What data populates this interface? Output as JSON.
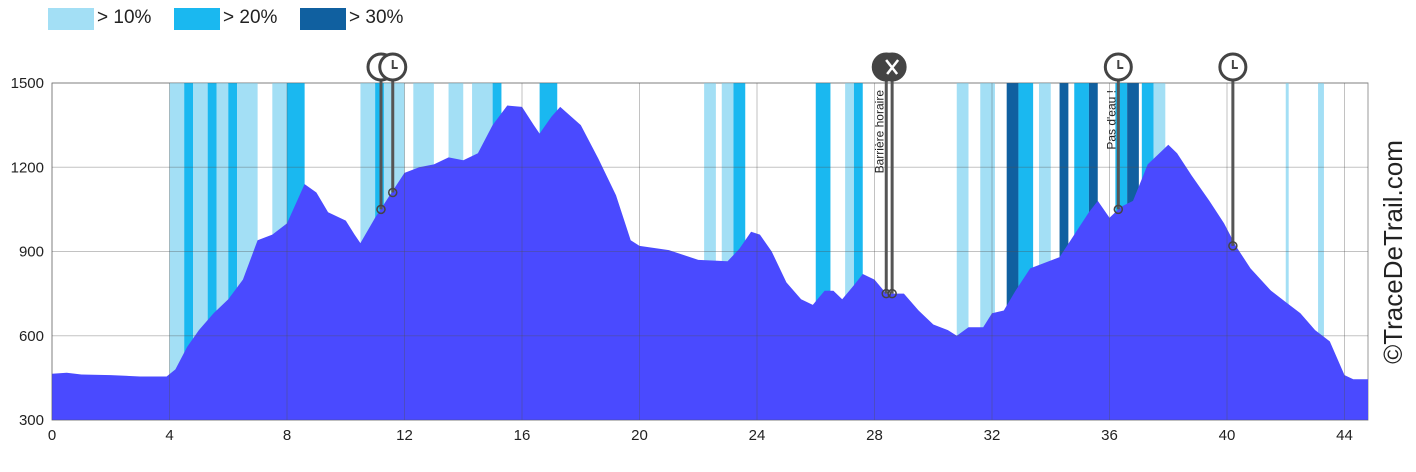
{
  "chart_data": {
    "type": "area",
    "watermark": "©TraceDeTrail.com",
    "legend": [
      {
        "name": "> 10%",
        "color": "#a3dff5"
      },
      {
        "name": "> 20%",
        "color": "#1ab8f0"
      },
      {
        "name": "> 30%",
        "color": "#1060a0"
      }
    ],
    "color": "#4a4aff",
    "xlim": [
      0,
      44.8
    ],
    "ylim": [
      300,
      1500
    ],
    "xticks": [
      0,
      4,
      8,
      12,
      16,
      20,
      24,
      28,
      32,
      36,
      40,
      44
    ],
    "yticks": [
      300,
      600,
      900,
      1200,
      1500
    ],
    "grid": true,
    "x": [
      0,
      0.5,
      1,
      2,
      3,
      3.9,
      4.2,
      4.6,
      5,
      5.5,
      6,
      6.5,
      7,
      7.5,
      8,
      8.6,
      9,
      9.4,
      10,
      10.3,
      10.5,
      11,
      11.5,
      12,
      12.5,
      13,
      13.5,
      14,
      14.5,
      15,
      15.5,
      16,
      16.4,
      16.6,
      17,
      17.3,
      18,
      18.6,
      19.2,
      19.7,
      20,
      21,
      22,
      23,
      23.4,
      23.8,
      24.1,
      24.5,
      25,
      25.5,
      25.9,
      26.3,
      26.6,
      26.9,
      27.3,
      27.6,
      28,
      28.4,
      29,
      29.5,
      30,
      30.5,
      30.8,
      31.2,
      31.7,
      32,
      32.4,
      32.8,
      33.3,
      33.8,
      34.3,
      34.8,
      35.3,
      35.6,
      36,
      36.4,
      36.8,
      37.3,
      37.7,
      38,
      38.3,
      38.8,
      39.4,
      39.9,
      40.3,
      40.8,
      41.5,
      42,
      42.5,
      43,
      43.5,
      44,
      44.3,
      44.8
    ],
    "values": [
      465,
      468,
      462,
      460,
      455,
      455,
      480,
      560,
      620,
      680,
      730,
      800,
      940,
      960,
      1000,
      1140,
      1110,
      1040,
      1010,
      960,
      930,
      1020,
      1100,
      1180,
      1200,
      1210,
      1235,
      1225,
      1250,
      1350,
      1420,
      1415,
      1350,
      1320,
      1380,
      1415,
      1350,
      1230,
      1100,
      940,
      920,
      905,
      870,
      865,
      910,
      970,
      960,
      900,
      790,
      730,
      710,
      760,
      760,
      730,
      780,
      820,
      800,
      750,
      750,
      690,
      640,
      620,
      600,
      630,
      630,
      680,
      690,
      760,
      840,
      860,
      880,
      960,
      1040,
      1080,
      1020,
      1060,
      1080,
      1210,
      1250,
      1280,
      1250,
      1170,
      1080,
      1000,
      920,
      840,
      760,
      720,
      680,
      620,
      580,
      460,
      445,
      445
    ],
    "slope_bands": [
      {
        "start": 4,
        "end": 4.5,
        "level": 0
      },
      {
        "start": 4.5,
        "end": 4.8,
        "level": 1
      },
      {
        "start": 4.8,
        "end": 5.3,
        "level": 0
      },
      {
        "start": 5.3,
        "end": 5.6,
        "level": 1
      },
      {
        "start": 5.6,
        "end": 6.0,
        "level": 0
      },
      {
        "start": 6.0,
        "end": 6.3,
        "level": 1
      },
      {
        "start": 6.3,
        "end": 7.0,
        "level": 0
      },
      {
        "start": 7.5,
        "end": 8.0,
        "level": 0
      },
      {
        "start": 8.0,
        "end": 8.6,
        "level": 1
      },
      {
        "start": 10.5,
        "end": 11.0,
        "level": 0
      },
      {
        "start": 11.0,
        "end": 11.3,
        "level": 1
      },
      {
        "start": 11.3,
        "end": 12.0,
        "level": 0
      },
      {
        "start": 12.3,
        "end": 13.0,
        "level": 0
      },
      {
        "start": 13.5,
        "end": 14.0,
        "level": 0
      },
      {
        "start": 14.3,
        "end": 15.0,
        "level": 0
      },
      {
        "start": 15.0,
        "end": 15.3,
        "level": 1
      },
      {
        "start": 16.6,
        "end": 17.2,
        "level": 1
      },
      {
        "start": 22.2,
        "end": 22.6,
        "level": 0
      },
      {
        "start": 22.8,
        "end": 23.2,
        "level": 0
      },
      {
        "start": 23.2,
        "end": 23.6,
        "level": 1
      },
      {
        "start": 26.0,
        "end": 26.5,
        "level": 1
      },
      {
        "start": 27.0,
        "end": 27.3,
        "level": 0
      },
      {
        "start": 27.3,
        "end": 27.6,
        "level": 1
      },
      {
        "start": 30.8,
        "end": 31.2,
        "level": 0
      },
      {
        "start": 31.6,
        "end": 32.1,
        "level": 0
      },
      {
        "start": 32.5,
        "end": 32.9,
        "level": 2
      },
      {
        "start": 32.9,
        "end": 33.4,
        "level": 1
      },
      {
        "start": 33.6,
        "end": 34.0,
        "level": 0
      },
      {
        "start": 34.3,
        "end": 34.6,
        "level": 2
      },
      {
        "start": 34.8,
        "end": 35.3,
        "level": 1
      },
      {
        "start": 35.3,
        "end": 35.6,
        "level": 2
      },
      {
        "start": 36.2,
        "end": 36.6,
        "level": 1
      },
      {
        "start": 36.6,
        "end": 37.0,
        "level": 2
      },
      {
        "start": 37.1,
        "end": 37.5,
        "level": 1
      },
      {
        "start": 37.5,
        "end": 37.9,
        "level": 0
      },
      {
        "start": 42.0,
        "end": 42.1,
        "level": 0
      },
      {
        "start": 43.1,
        "end": 43.3,
        "level": 0
      }
    ],
    "markers": [
      {
        "x": 11.2,
        "elev": 1050,
        "icon": "clock"
      },
      {
        "x": 11.6,
        "elev": 1110,
        "icon": "clock"
      },
      {
        "x": 28.4,
        "elev": 750,
        "icon": "food"
      },
      {
        "x": 28.6,
        "elev": 750,
        "icon": "food"
      },
      {
        "x": 36.3,
        "elev": 1050,
        "icon": "clock"
      },
      {
        "x": 40.2,
        "elev": 920,
        "icon": "clock"
      }
    ],
    "annotations": [
      {
        "text": "Barrière horaire",
        "x": 28.2
      },
      {
        "text": "Pas d'eau !",
        "x": 36.1
      }
    ]
  }
}
